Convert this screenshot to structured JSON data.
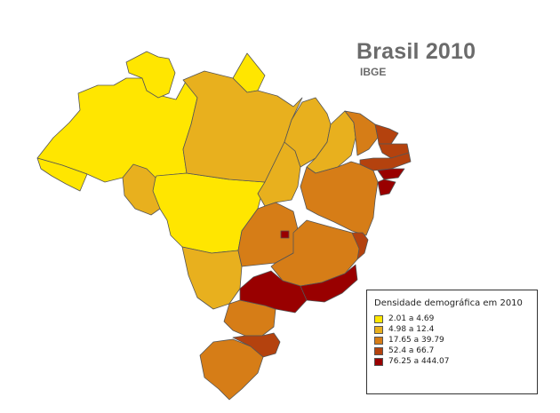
{
  "map": {
    "title": "Brasil 2010",
    "subtitle": "IBGE"
  },
  "legend": {
    "title": "Densidade demográfica em 2010",
    "classes": [
      {
        "label": "2.01 a 4.69",
        "color": "#ffe600"
      },
      {
        "label": "4.98 a 12.4",
        "color": "#e8b01e"
      },
      {
        "label": "17.65 a 39.79",
        "color": "#d67d17"
      },
      {
        "label": "52.4 a 66.7",
        "color": "#b4420e"
      },
      {
        "label": "76.25 a 444.07",
        "color": "#990000"
      }
    ]
  },
  "regions": [
    {
      "class_index": 0
    },
    {
      "class_index": 0
    },
    {
      "class_index": 0
    },
    {
      "class_index": 0
    },
    {
      "class_index": 0
    },
    {
      "class_index": 1
    },
    {
      "class_index": 1
    },
    {
      "class_index": 1
    },
    {
      "class_index": 1
    },
    {
      "class_index": 1
    },
    {
      "class_index": 1
    },
    {
      "class_index": 2
    },
    {
      "class_index": 2
    },
    {
      "class_index": 2
    },
    {
      "class_index": 2
    },
    {
      "class_index": 2
    },
    {
      "class_index": 2
    },
    {
      "class_index": 3
    },
    {
      "class_index": 3
    },
    {
      "class_index": 3
    },
    {
      "class_index": 3
    },
    {
      "class_index": 3
    },
    {
      "class_index": 4
    },
    {
      "class_index": 4
    },
    {
      "class_index": 4
    },
    {
      "class_index": 4
    },
    {
      "class_index": 4
    }
  ]
}
